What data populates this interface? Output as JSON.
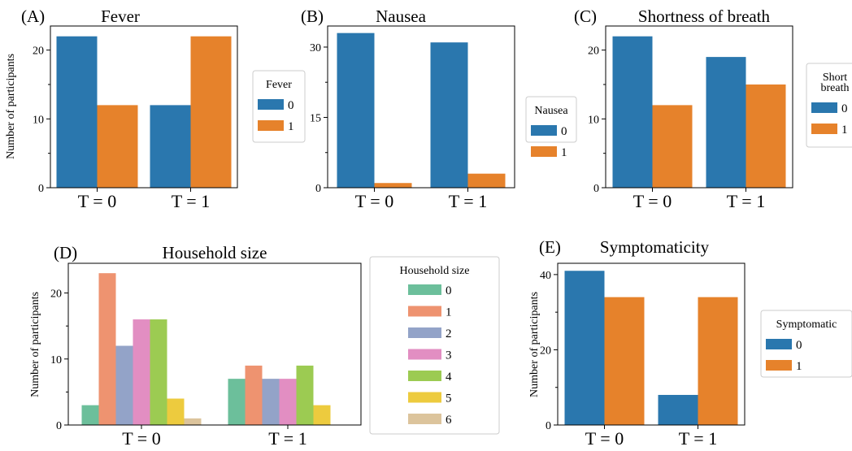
{
  "colors": {
    "binary0": "#2a77ae",
    "binary1": "#e6822b",
    "household": [
      "#6cbf9b",
      "#ee9370",
      "#93a3c8",
      "#e28ec2",
      "#9ccb52",
      "#edcb3e",
      "#dcc49c"
    ]
  },
  "chart_data": [
    {
      "id": "A",
      "type": "bar",
      "panel_label": "(A)",
      "title": "Fever",
      "xlabel": "",
      "ylabel": "Number of participants",
      "categories": [
        "T = 0",
        "T = 1"
      ],
      "ylim": [
        0,
        23.5
      ],
      "yticks": [
        0,
        10,
        20
      ],
      "yminor": [
        5,
        15
      ],
      "legend": {
        "title_lines": [
          "Fever"
        ],
        "position": "right"
      },
      "series": [
        {
          "name": "0",
          "values": [
            22,
            12
          ]
        },
        {
          "name": "1",
          "values": [
            12,
            22
          ]
        }
      ]
    },
    {
      "id": "B",
      "type": "bar",
      "panel_label": "(B)",
      "title": "Nausea",
      "xlabel": "",
      "ylabel": "",
      "categories": [
        "T = 0",
        "T = 1"
      ],
      "ylim": [
        0,
        34.5
      ],
      "yticks": [
        0,
        15,
        30
      ],
      "yminor": [
        7.5,
        22.5
      ],
      "legend": {
        "title_lines": [
          "Nausea"
        ],
        "position": "right"
      },
      "series": [
        {
          "name": "0",
          "values": [
            33,
            31
          ]
        },
        {
          "name": "1",
          "values": [
            1,
            3
          ]
        }
      ]
    },
    {
      "id": "C",
      "type": "bar",
      "panel_label": "(C)",
      "title": "Shortness of breath",
      "xlabel": "",
      "ylabel": "",
      "categories": [
        "T = 0",
        "T = 1"
      ],
      "ylim": [
        0,
        23.5
      ],
      "yticks": [
        0,
        10,
        20
      ],
      "yminor": [
        5,
        15
      ],
      "legend": {
        "title_lines": [
          "Short",
          "breath"
        ],
        "position": "right"
      },
      "series": [
        {
          "name": "0",
          "values": [
            22,
            19
          ]
        },
        {
          "name": "1",
          "values": [
            12,
            15
          ]
        }
      ]
    },
    {
      "id": "D",
      "type": "bar",
      "panel_label": "(D)",
      "title": "Household size",
      "xlabel": "",
      "ylabel": "Number of participants",
      "categories": [
        "T = 0",
        "T = 1"
      ],
      "ylim": [
        0,
        24.5
      ],
      "yticks": [
        0,
        10,
        20
      ],
      "yminor": [
        5,
        15
      ],
      "legend": {
        "title_lines": [
          "Household size"
        ],
        "position": "right"
      },
      "series": [
        {
          "name": "0",
          "values": [
            3,
            7
          ]
        },
        {
          "name": "1",
          "values": [
            23,
            9
          ]
        },
        {
          "name": "2",
          "values": [
            12,
            7
          ]
        },
        {
          "name": "3",
          "values": [
            16,
            7
          ]
        },
        {
          "name": "4",
          "values": [
            16,
            9
          ]
        },
        {
          "name": "5",
          "values": [
            4,
            3
          ]
        },
        {
          "name": "6",
          "values": [
            1,
            0
          ]
        }
      ]
    },
    {
      "id": "E",
      "type": "bar",
      "panel_label": "(E)",
      "title": "Symptomaticity",
      "xlabel": "",
      "ylabel": "Number of participants",
      "categories": [
        "T = 0",
        "T = 1"
      ],
      "ylim": [
        0,
        43
      ],
      "yticks": [
        0,
        20,
        40
      ],
      "yminor": [
        10,
        30
      ],
      "legend": {
        "title_lines": [
          "Symptomatic"
        ],
        "position": "right"
      },
      "series": [
        {
          "name": "0",
          "values": [
            41,
            8
          ]
        },
        {
          "name": "1",
          "values": [
            34,
            34
          ]
        }
      ]
    }
  ]
}
